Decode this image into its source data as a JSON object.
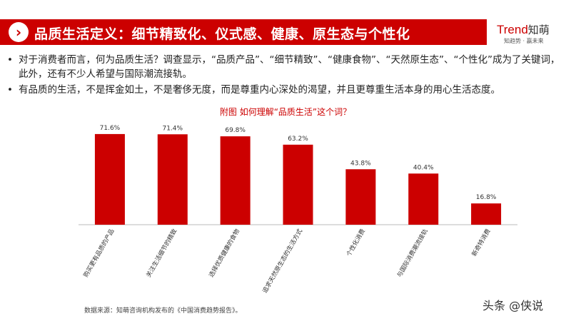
{
  "header": {
    "arrow_icon": "chevron-right-icon",
    "title": "品质生活定义：细节精致化、仪式感、健康、原生态与个性化",
    "brand_latin": "Trend",
    "brand_cn": "知萌",
    "brand_tagline": "知趋势 · 赢未来"
  },
  "bullets": [
    "对于消费者而言，何为品质生活？调查显示，“品质产品”、“细节精致”、“健康食物”、“天然原生态”、“个性化”成为了关键词，此外，还有不少人希望与国际潮流接轨。",
    "有品质的生活，不是挥金如土，不是奢侈无度，而是尊重内心深处的渴望，并且更尊重生活本身的用心生活态度。"
  ],
  "chart_data": {
    "type": "bar",
    "title": "附图  如何理解“品质生活”这个词？",
    "categories": [
      "购买更有品质的产品",
      "关注生活细节的精致",
      "选择优质健康的食物",
      "追求天然原生态的生活方式",
      "个性化消费",
      "与国际消费潮流接轨",
      "新奇特消费"
    ],
    "values": [
      71.6,
      71.4,
      69.8,
      63.2,
      43.8,
      40.4,
      16.8
    ],
    "value_labels": [
      "71.6%",
      "71.4%",
      "69.8%",
      "63.2%",
      "43.8%",
      "40.4%",
      "16.8%"
    ],
    "bar_color": "#cc0000",
    "ylim": [
      0,
      80
    ],
    "grid": false,
    "xlabel": "",
    "ylabel": ""
  },
  "footer": {
    "source": "数据来源：知萌咨询机构发布的《中国消费趋势报告》。",
    "watermark": "头条 @侠说"
  }
}
